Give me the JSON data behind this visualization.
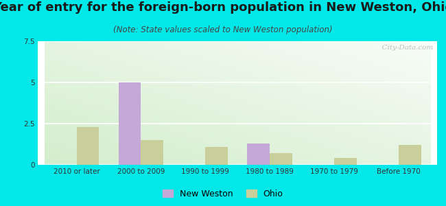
{
  "title": "Year of entry for the foreign-born population in New Weston, Ohio",
  "subtitle": "(Note: State values scaled to New Weston population)",
  "categories": [
    "2010 or later",
    "2000 to 2009",
    "1990 to 1999",
    "1980 to 1989",
    "1970 to 1979",
    "Before 1970"
  ],
  "new_weston": [
    0,
    5,
    0,
    1.3,
    0,
    0
  ],
  "ohio": [
    2.3,
    1.5,
    1.1,
    0.7,
    0.4,
    1.2
  ],
  "new_weston_color": "#c4a8d8",
  "ohio_color": "#c8cf9a",
  "ylim": [
    0,
    7.5
  ],
  "yticks": [
    0,
    2.5,
    5,
    7.5
  ],
  "outer_bg": "#00e8e8",
  "title_fontsize": 13,
  "subtitle_fontsize": 8.5,
  "tick_fontsize": 7.5,
  "legend_fontsize": 9,
  "bar_width": 0.35,
  "watermark": "  City-Data.com"
}
